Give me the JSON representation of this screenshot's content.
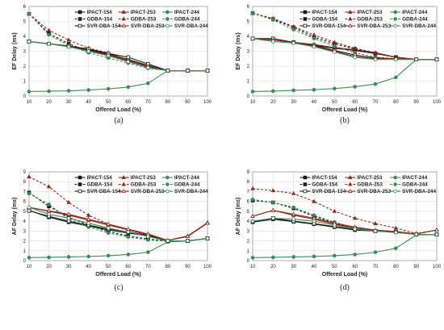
{
  "colors": {
    "black": "#1a1a1a",
    "red": "#8b2a1e",
    "green": "#3d8a5a",
    "grid": "#d9d9d9",
    "frame": "#a0a0a0"
  },
  "chart_data": [
    {
      "type": "line",
      "caption": "(a)",
      "ylabel": "EF Delay (ms)",
      "xlabel": "Offered Load (%)",
      "x": [
        10,
        20,
        30,
        40,
        50,
        60,
        70,
        80,
        90,
        100
      ],
      "xlim": [
        10,
        100
      ],
      "ylim": [
        0,
        6
      ],
      "yticks": [
        0,
        1,
        2,
        3,
        4,
        5,
        6
      ],
      "legend_position": "top-right",
      "series": [
        {
          "name": "IPACT-154",
          "color": "black",
          "dash": "solid",
          "values": [
            3.65,
            3.5,
            3.35,
            3.1,
            2.8,
            2.45,
            2.05,
            1.7,
            1.7,
            1.7
          ]
        },
        {
          "name": "IPACT-253",
          "color": "red",
          "dash": "solid",
          "values": [
            3.65,
            3.5,
            3.35,
            3.05,
            2.75,
            2.35,
            2.0,
            1.7,
            1.7,
            1.7
          ]
        },
        {
          "name": "IPACT-244",
          "color": "green",
          "dash": "solid",
          "values": [
            0.3,
            0.32,
            0.35,
            0.4,
            0.48,
            0.6,
            0.85,
            1.7,
            1.7,
            1.7
          ]
        },
        {
          "name": "GDBA-154",
          "color": "black",
          "dash": "dash",
          "values": [
            5.5,
            4.2,
            3.5,
            3.0,
            2.7,
            2.3,
            1.95,
            1.7,
            1.7,
            1.7
          ]
        },
        {
          "name": "GDBA-253",
          "color": "red",
          "dash": "dash",
          "values": [
            5.5,
            4.4,
            3.75,
            3.2,
            2.9,
            2.4,
            1.95,
            1.7,
            1.7,
            1.7
          ]
        },
        {
          "name": "GDBA-244",
          "color": "green",
          "dash": "dash",
          "values": [
            5.5,
            4.1,
            3.4,
            2.9,
            2.55,
            2.2,
            1.85,
            1.7,
            1.7,
            1.7
          ]
        },
        {
          "name": "SVR-DBA-154",
          "color": "black",
          "dash": "solid",
          "marker_hollow": true,
          "values": [
            3.65,
            3.5,
            3.35,
            3.15,
            2.85,
            2.6,
            2.15,
            1.7,
            1.7,
            1.7
          ]
        },
        {
          "name": "SVR-DBA-253",
          "color": "red",
          "dash": "solid",
          "marker_hollow": true,
          "values": [
            3.65,
            3.5,
            3.3,
            3.05,
            2.75,
            2.4,
            2.0,
            1.7,
            1.7,
            1.7
          ]
        },
        {
          "name": "SVR-DBA-244",
          "color": "green",
          "dash": "solid",
          "marker_hollow": true,
          "values": [
            3.65,
            3.5,
            3.3,
            3.0,
            2.7,
            2.3,
            1.9,
            1.7,
            1.7,
            1.7
          ]
        }
      ]
    },
    {
      "type": "line",
      "caption": "(b)",
      "ylabel": "EF Delay (ms)",
      "xlabel": "Offered Load (%)",
      "x": [
        10,
        20,
        30,
        40,
        50,
        60,
        70,
        80,
        90,
        100
      ],
      "xlim": [
        10,
        100
      ],
      "ylim": [
        0,
        6
      ],
      "yticks": [
        0,
        1,
        2,
        3,
        4,
        5,
        6
      ],
      "legend_position": "top-right",
      "series": [
        {
          "name": "IPACT-154",
          "color": "black",
          "dash": "solid",
          "values": [
            3.85,
            3.75,
            3.6,
            3.4,
            3.2,
            3.05,
            2.85,
            2.6,
            2.45,
            2.45
          ]
        },
        {
          "name": "IPACT-253",
          "color": "red",
          "dash": "solid",
          "values": [
            3.85,
            3.75,
            3.6,
            3.45,
            3.25,
            3.1,
            2.9,
            2.6,
            2.45,
            2.45
          ]
        },
        {
          "name": "IPACT-244",
          "color": "green",
          "dash": "solid",
          "values": [
            0.3,
            0.33,
            0.38,
            0.42,
            0.5,
            0.62,
            0.8,
            1.25,
            2.45,
            2.45
          ]
        },
        {
          "name": "GDBA-154",
          "color": "black",
          "dash": "dash",
          "values": [
            5.55,
            5.15,
            4.6,
            3.95,
            3.5,
            3.15,
            2.85,
            2.6,
            2.45,
            2.45
          ]
        },
        {
          "name": "GDBA-253",
          "color": "red",
          "dash": "dash",
          "values": [
            5.55,
            5.2,
            4.65,
            4.1,
            3.6,
            3.2,
            2.9,
            2.6,
            2.45,
            2.45
          ]
        },
        {
          "name": "GDBA-244",
          "color": "green",
          "dash": "dash",
          "values": [
            5.55,
            5.1,
            4.45,
            3.85,
            3.35,
            2.9,
            2.6,
            2.5,
            2.45,
            2.45
          ]
        },
        {
          "name": "SVR-DBA-154",
          "color": "black",
          "dash": "solid",
          "marker_hollow": true,
          "values": [
            3.85,
            3.85,
            3.6,
            3.4,
            3.05,
            2.75,
            2.55,
            2.5,
            2.45,
            2.45
          ]
        },
        {
          "name": "SVR-DBA-253",
          "color": "red",
          "dash": "solid",
          "marker_hollow": true,
          "values": [
            3.85,
            3.75,
            3.6,
            3.35,
            3.0,
            2.65,
            2.5,
            2.5,
            2.45,
            2.45
          ]
        },
        {
          "name": "SVR-DBA-244",
          "color": "green",
          "dash": "solid",
          "marker_hollow": true,
          "values": [
            3.85,
            3.65,
            3.55,
            3.3,
            2.95,
            2.6,
            2.45,
            2.45,
            2.45,
            2.45
          ]
        }
      ]
    },
    {
      "type": "line",
      "caption": "(c)",
      "ylabel": "AF Delay (ms)",
      "xlabel": "Offered Load (%)",
      "x": [
        10,
        20,
        30,
        40,
        50,
        60,
        70,
        80,
        90,
        100
      ],
      "xlim": [
        10,
        100
      ],
      "ylim": [
        0,
        9
      ],
      "yticks": [
        0,
        1,
        2,
        3,
        4,
        5,
        6,
        7,
        8,
        9
      ],
      "legend_position": "top-right",
      "series": [
        {
          "name": "IPACT-154",
          "color": "black",
          "dash": "solid",
          "values": [
            5.1,
            4.4,
            3.9,
            3.5,
            3.1,
            2.8,
            2.5,
            1.95,
            2.0,
            2.25
          ]
        },
        {
          "name": "IPACT-253",
          "color": "red",
          "dash": "solid",
          "values": [
            5.4,
            5.0,
            4.6,
            4.1,
            3.6,
            3.1,
            2.6,
            2.05,
            2.5,
            3.85
          ]
        },
        {
          "name": "IPACT-244",
          "color": "green",
          "dash": "solid",
          "values": [
            0.3,
            0.33,
            0.37,
            0.42,
            0.5,
            0.62,
            0.85,
            1.9,
            2.0,
            2.25
          ]
        },
        {
          "name": "GDBA-154",
          "color": "black",
          "dash": "dash",
          "values": [
            6.9,
            5.5,
            4.4,
            3.6,
            2.95,
            2.5,
            2.2,
            1.95,
            2.0,
            2.25
          ]
        },
        {
          "name": "GDBA-253",
          "color": "red",
          "dash": "dash",
          "values": [
            8.5,
            7.5,
            5.9,
            4.6,
            3.7,
            3.1,
            2.7,
            2.05,
            2.45,
            3.85
          ]
        },
        {
          "name": "GDBA-244",
          "color": "green",
          "dash": "dash",
          "values": [
            6.8,
            5.7,
            4.2,
            3.4,
            2.8,
            2.4,
            2.1,
            1.95,
            2.0,
            2.25
          ]
        },
        {
          "name": "SVR-DBA-154",
          "color": "black",
          "dash": "solid",
          "marker_hollow": true,
          "values": [
            5.05,
            4.5,
            4.0,
            3.6,
            3.2,
            2.9,
            2.55,
            2.0,
            2.0,
            2.25
          ]
        },
        {
          "name": "SVR-DBA-253",
          "color": "red",
          "dash": "solid",
          "marker_hollow": true,
          "values": [
            5.4,
            5.05,
            4.7,
            4.2,
            3.7,
            3.2,
            2.7,
            2.05,
            2.45,
            3.8
          ]
        },
        {
          "name": "SVR-DBA-244",
          "color": "green",
          "dash": "solid",
          "marker_hollow": true,
          "values": [
            5.4,
            4.7,
            4.3,
            3.8,
            3.3,
            2.9,
            2.45,
            2.0,
            2.0,
            2.25
          ]
        }
      ]
    },
    {
      "type": "line",
      "caption": "(d)",
      "ylabel": "AF Delay (ms)",
      "xlabel": "Offered Load (%)",
      "x": [
        10,
        20,
        30,
        40,
        50,
        60,
        70,
        80,
        90,
        100
      ],
      "xlim": [
        10,
        100
      ],
      "ylim": [
        0,
        9
      ],
      "yticks": [
        0,
        1,
        2,
        3,
        4,
        5,
        6,
        7,
        8,
        9
      ],
      "legend_position": "top-right",
      "series": [
        {
          "name": "IPACT-154",
          "color": "black",
          "dash": "solid",
          "values": [
            3.9,
            4.2,
            3.95,
            3.7,
            3.4,
            3.1,
            3.0,
            2.9,
            2.65,
            2.65
          ]
        },
        {
          "name": "IPACT-253",
          "color": "red",
          "dash": "solid",
          "values": [
            4.5,
            5.1,
            4.6,
            4.2,
            3.7,
            3.3,
            3.05,
            2.95,
            2.7,
            3.1
          ]
        },
        {
          "name": "IPACT-244",
          "color": "green",
          "dash": "solid",
          "values": [
            0.3,
            0.33,
            0.37,
            0.42,
            0.5,
            0.62,
            0.85,
            1.25,
            2.6,
            2.65
          ]
        },
        {
          "name": "GDBA-154",
          "color": "black",
          "dash": "dash",
          "values": [
            6.1,
            5.9,
            5.3,
            4.5,
            3.8,
            3.3,
            3.0,
            2.9,
            2.65,
            2.65
          ]
        },
        {
          "name": "GDBA-253",
          "color": "red",
          "dash": "dash",
          "values": [
            7.3,
            7.1,
            6.8,
            6.0,
            5.0,
            4.3,
            3.75,
            3.3,
            2.75,
            3.1
          ]
        },
        {
          "name": "GDBA-244",
          "color": "green",
          "dash": "dash",
          "values": [
            6.2,
            5.9,
            5.4,
            4.6,
            3.9,
            3.3,
            3.0,
            2.85,
            2.65,
            2.65
          ]
        },
        {
          "name": "SVR-DBA-154",
          "color": "black",
          "dash": "solid",
          "marker_hollow": true,
          "values": [
            3.95,
            4.3,
            4.0,
            3.75,
            3.45,
            3.15,
            3.0,
            2.9,
            2.65,
            2.65
          ]
        },
        {
          "name": "SVR-DBA-253",
          "color": "red",
          "dash": "solid",
          "marker_hollow": true,
          "values": [
            4.5,
            5.1,
            4.7,
            4.3,
            3.8,
            3.4,
            3.1,
            2.95,
            2.7,
            3.1
          ]
        },
        {
          "name": "SVR-DBA-244",
          "color": "green",
          "dash": "solid",
          "marker_hollow": true,
          "values": [
            4.0,
            4.3,
            4.2,
            4.0,
            3.6,
            3.2,
            3.0,
            2.85,
            2.65,
            2.65
          ]
        }
      ]
    }
  ]
}
